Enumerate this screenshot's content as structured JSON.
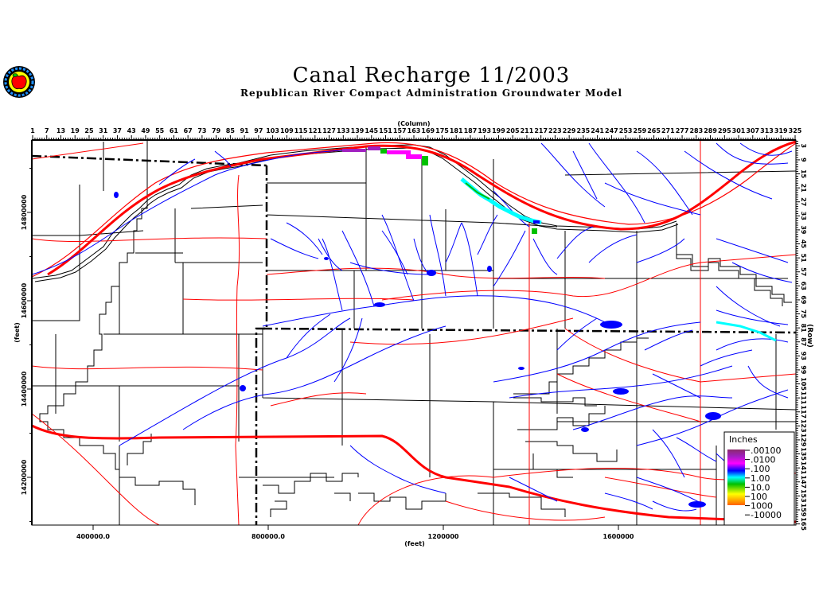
{
  "title": "Canal Recharge 11/2003",
  "subtitle": "Republican River Compact Administration Groundwater Model",
  "logo": {
    "icon": "apple-seal-logo"
  },
  "axes": {
    "top_label": "(Column)",
    "right_label": "(Row)",
    "left_label": "(feet)",
    "bottom_label": "(feet)",
    "column_range": [
      1,
      325
    ],
    "row_range": [
      1,
      165
    ],
    "column_ticks": [
      "1",
      "7",
      "13",
      "19",
      "25",
      "31",
      "37",
      "43",
      "49",
      "55",
      "61",
      "67",
      "73",
      "79",
      "85",
      "91",
      "97",
      "103",
      "109",
      "115",
      "121",
      "127",
      "133",
      "139",
      "145",
      "151",
      "157",
      "163",
      "169",
      "175",
      "181",
      "187",
      "193",
      "199",
      "205",
      "211",
      "217",
      "223",
      "229",
      "235",
      "241",
      "247",
      "253",
      "259",
      "265",
      "271",
      "277",
      "283",
      "289",
      "295",
      "301",
      "307",
      "313",
      "319",
      "325"
    ],
    "row_ticks": [
      "3",
      "9",
      "15",
      "21",
      "27",
      "33",
      "39",
      "45",
      "51",
      "57",
      "63",
      "69",
      "75",
      "81",
      "87",
      "93",
      "99",
      "105",
      "111",
      "117",
      "123",
      "129",
      "135",
      "141",
      "147",
      "153",
      "159",
      "165"
    ],
    "x_feet_ticks": [
      {
        "value": 400000,
        "label": "400000.0"
      },
      {
        "value": 800000,
        "label": "800000.0"
      },
      {
        "value": 1200000,
        "label": "1200000"
      },
      {
        "value": 1600000,
        "label": "1600000"
      }
    ],
    "y_feet_ticks": [
      {
        "value": 14800000,
        "label": "14800000"
      },
      {
        "value": 14600000,
        "label": "14600000"
      },
      {
        "value": 14400000,
        "label": "14400000"
      },
      {
        "value": 14200000,
        "label": "14200000"
      }
    ]
  },
  "legend": {
    "title": "Inches",
    "labels": [
      ".00100",
      ".0100",
      ".100",
      "1.00",
      "10.0",
      "100",
      "1000",
      "-10000"
    ],
    "colors": [
      "#8b2a6a",
      "#a020c0",
      "#ff00ff",
      "#0000ff",
      "#00ffff",
      "#00c000",
      "#ffff00",
      "#ff6000"
    ]
  },
  "colors": {
    "roads": "#ff0000",
    "streams": "#0000ff",
    "boundaries": "#000000"
  }
}
